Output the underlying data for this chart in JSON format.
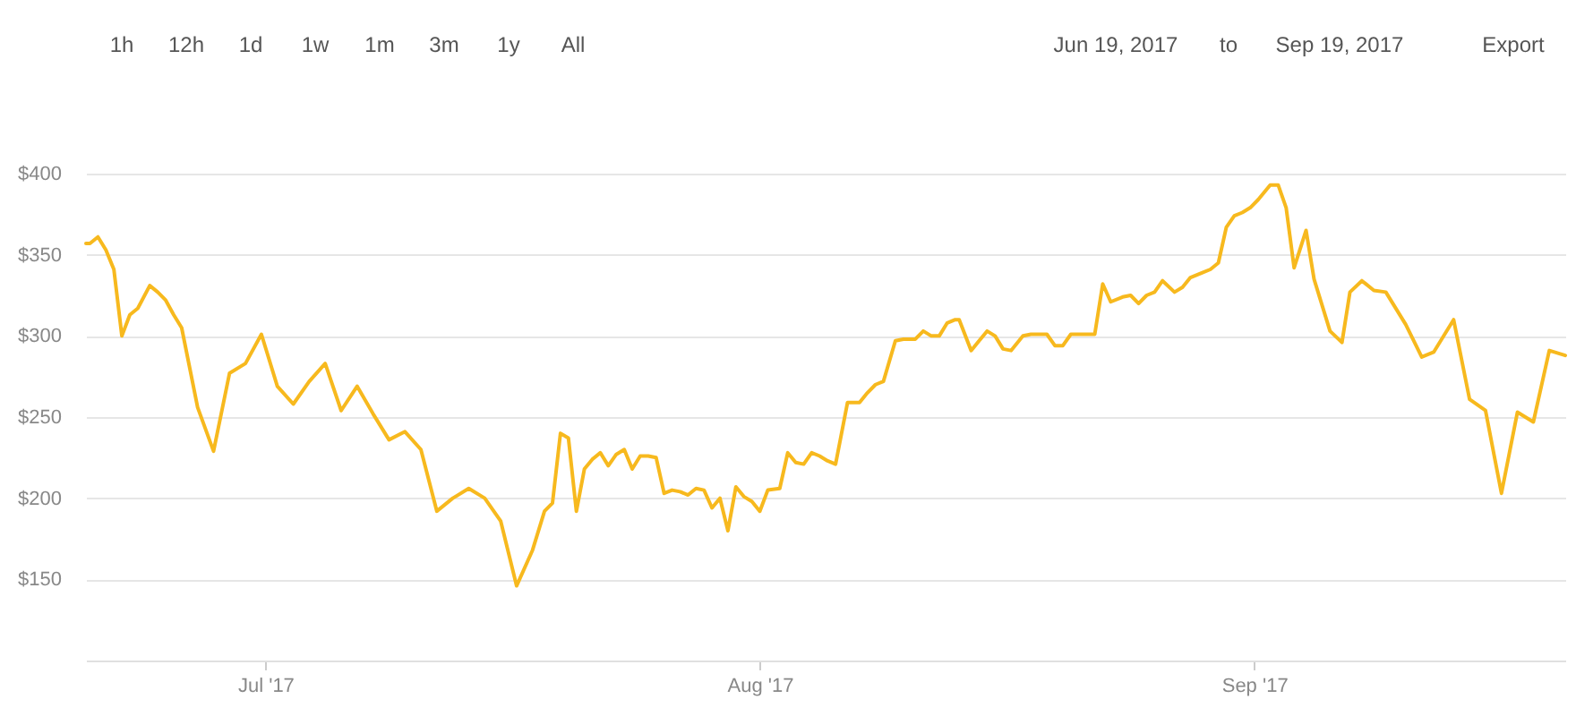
{
  "chart_data": {
    "type": "line",
    "x": [
      "2017-06-19T18:00",
      "2017-06-20T00:00",
      "2017-06-20T12:00",
      "2017-06-21T00:00",
      "2017-06-21T12:00",
      "2017-06-22T00:00",
      "2017-06-22T12:00",
      "2017-06-23T00:00",
      "2017-06-23T18:00",
      "2017-06-24T06:00",
      "2017-06-24T18:00",
      "2017-06-25T06:00",
      "2017-06-25T18:00",
      "2017-06-26T18:00",
      "2017-06-27T18:00",
      "2017-06-28T18:00",
      "2017-06-29T18:00",
      "2017-06-30T18:00",
      "2017-07-01T18:00",
      "2017-07-02T18:00",
      "2017-07-03T18:00",
      "2017-07-04T18:00",
      "2017-07-05T18:00",
      "2017-07-06T18:00",
      "2017-07-07T18:00",
      "2017-07-08T18:00",
      "2017-07-09T18:00",
      "2017-07-10T18:00",
      "2017-07-11T18:00",
      "2017-07-12T18:00",
      "2017-07-13T18:00",
      "2017-07-14T18:00",
      "2017-07-15T18:00",
      "2017-07-16T18:00",
      "2017-07-17T18:00",
      "2017-07-18T12:00",
      "2017-07-19T00:00",
      "2017-07-19T12:00",
      "2017-07-20T00:00",
      "2017-07-20T12:00",
      "2017-07-21T00:00",
      "2017-07-21T12:00",
      "2017-07-22T00:00",
      "2017-07-22T12:00",
      "2017-07-23T00:00",
      "2017-07-23T12:00",
      "2017-07-24T00:00",
      "2017-07-24T12:00",
      "2017-07-25T00:00",
      "2017-07-25T12:00",
      "2017-07-26T00:00",
      "2017-07-26T12:00",
      "2017-07-27T00:00",
      "2017-07-27T12:00",
      "2017-07-28T00:00",
      "2017-07-28T12:00",
      "2017-07-29T00:00",
      "2017-07-29T12:00",
      "2017-07-30T00:00",
      "2017-07-30T12:00",
      "2017-07-31T00:00",
      "2017-07-31T12:00",
      "2017-08-01T00:00",
      "2017-08-01T12:00",
      "2017-08-02T06:00",
      "2017-08-02T18:00",
      "2017-08-03T06:00",
      "2017-08-03T18:00",
      "2017-08-04T06:00",
      "2017-08-04T18:00",
      "2017-08-05T06:00",
      "2017-08-05T18:00",
      "2017-08-06T12:00",
      "2017-08-07T06:00",
      "2017-08-07T18:00",
      "2017-08-08T06:00",
      "2017-08-08T18:00",
      "2017-08-09T12:00",
      "2017-08-10T00:00",
      "2017-08-10T18:00",
      "2017-08-11T06:00",
      "2017-08-11T18:00",
      "2017-08-12T06:00",
      "2017-08-12T18:00",
      "2017-08-13T06:00",
      "2017-08-13T12:00",
      "2017-08-14T06:00",
      "2017-08-14T18:00",
      "2017-08-15T06:00",
      "2017-08-15T18:00",
      "2017-08-16T06:00",
      "2017-08-16T18:00",
      "2017-08-17T12:00",
      "2017-08-18T00:00",
      "2017-08-19T00:00",
      "2017-08-19T12:00",
      "2017-08-20T00:00",
      "2017-08-20T12:00",
      "2017-08-21T06:00",
      "2017-08-22T00:00",
      "2017-08-22T12:00",
      "2017-08-23T00:00",
      "2017-08-23T18:00",
      "2017-08-24T06:00",
      "2017-08-24T18:00",
      "2017-08-25T06:00",
      "2017-08-25T18:00",
      "2017-08-26T06:00",
      "2017-08-27T00:00",
      "2017-08-27T12:00",
      "2017-08-28T00:00",
      "2017-08-28T18:00",
      "2017-08-29T06:00",
      "2017-08-29T18:00",
      "2017-08-30T06:00",
      "2017-08-30T18:00",
      "2017-08-31T06:00",
      "2017-08-31T18:00",
      "2017-09-01T06:00",
      "2017-09-02T00:00",
      "2017-09-02T12:00",
      "2017-09-03T00:00",
      "2017-09-03T12:00",
      "2017-09-04T06:00",
      "2017-09-04T18:00",
      "2017-09-05T18:00",
      "2017-09-06T12:00",
      "2017-09-07T00:00",
      "2017-09-07T18:00",
      "2017-09-08T12:00",
      "2017-09-09T06:00",
      "2017-09-10T12:00",
      "2017-09-11T12:00",
      "2017-09-12T06:00",
      "2017-09-13T12:00",
      "2017-09-14T12:00",
      "2017-09-15T12:00",
      "2017-09-16T12:00",
      "2017-09-17T12:00",
      "2017-09-18T12:00",
      "2017-09-19T12:00",
      "2017-09-20T12:00"
    ],
    "series": [
      {
        "color": "#f7b91e",
        "values": [
          357,
          357,
          361,
          353,
          341,
          300,
          313,
          317,
          331,
          327,
          322,
          313,
          305,
          256,
          229,
          277,
          283,
          301,
          269,
          258,
          272,
          283,
          254,
          269,
          252,
          236,
          241,
          230,
          192,
          200,
          206,
          200,
          186,
          146,
          168,
          192,
          197,
          240,
          237,
          192,
          218,
          224,
          228,
          220,
          227,
          230,
          218,
          226,
          226,
          225,
          203,
          205,
          204,
          202,
          206,
          205,
          194,
          200,
          180,
          207,
          201,
          198,
          192,
          205,
          206,
          228,
          222,
          221,
          228,
          226,
          223,
          221,
          259,
          259,
          265,
          270,
          272,
          297,
          298,
          298,
          303,
          300,
          300,
          308,
          310,
          310,
          291,
          297,
          303,
          300,
          292,
          291,
          300,
          301,
          301,
          294,
          294,
          301,
          301,
          301,
          332,
          321,
          324,
          325,
          320,
          325,
          327,
          334,
          327,
          330,
          336,
          339,
          341,
          345,
          367,
          374,
          376,
          379,
          384,
          393,
          393,
          379,
          342,
          365,
          335,
          303,
          296,
          327,
          334,
          328,
          327,
          307,
          287,
          290,
          310,
          261,
          254,
          203,
          253,
          247,
          291,
          288
        ]
      }
    ],
    "xlim": [
      "2017-06-19T18:00",
      "2017-09-20T12:00"
    ],
    "ylim": [
      100,
      400
    ],
    "xticks": [
      {
        "value": "2017-07-01",
        "label": "Jul '17"
      },
      {
        "value": "2017-08-01",
        "label": "Aug '17"
      },
      {
        "value": "2017-09-01",
        "label": "Sep '17"
      }
    ],
    "yticks": [
      {
        "value": 150,
        "label": "$150"
      },
      {
        "value": 200,
        "label": "$200"
      },
      {
        "value": 250,
        "label": "$250"
      },
      {
        "value": 300,
        "label": "$300"
      },
      {
        "value": 350,
        "label": "$350"
      },
      {
        "value": 400,
        "label": "$400"
      }
    ],
    "grid": "y",
    "line_style": "solid",
    "annotations": [
      "1h",
      "12h",
      "1d",
      "1w",
      "1m",
      "3m",
      "1y",
      "All",
      "Jun 19, 2017",
      "to",
      "Sep 19, 2017",
      "Export"
    ]
  }
}
